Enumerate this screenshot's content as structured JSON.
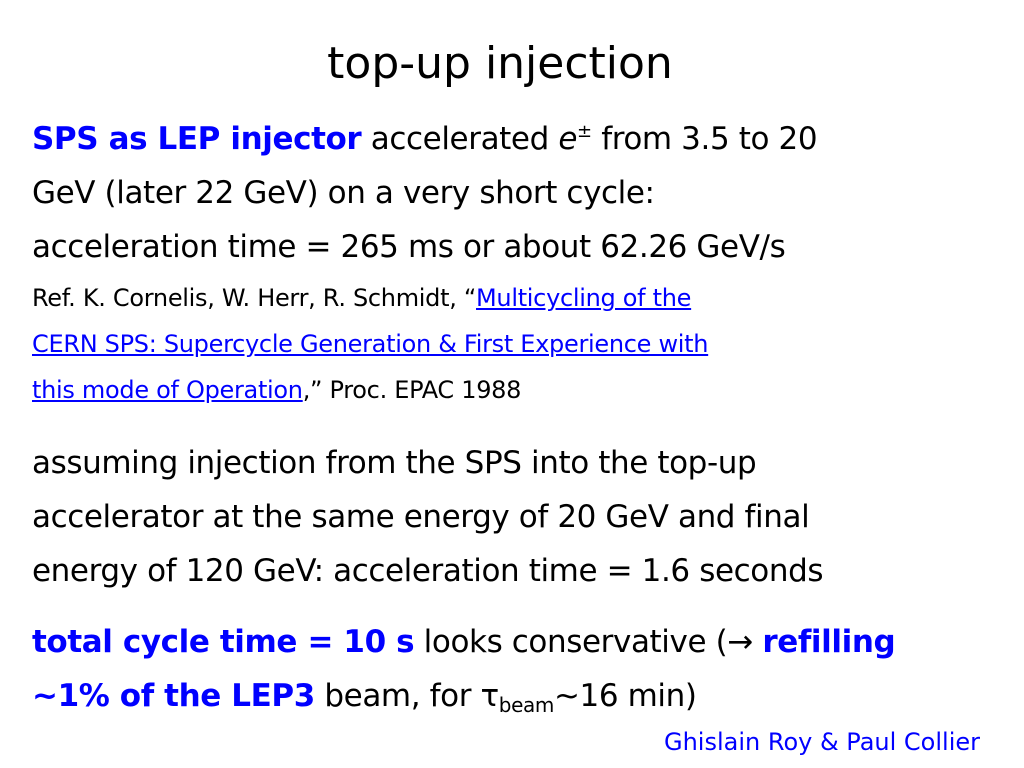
{
  "title": "top-up injection",
  "para1": {
    "highlight": "SPS as LEP injector",
    "text_a": "accelerated",
    "particle": "e",
    "particle_sup": "±",
    "text_b": "from 3.5 to 20",
    "line2": "GeV (later 22 GeV) on a very short cycle:",
    "line3": "acceleration time = 265 ms or about 62.26 GeV/s"
  },
  "reference": {
    "prefix": "Ref. K. Cornelis, W. Herr, R. Schmidt, “",
    "link_line1": "Multicycling of the",
    "link_line2": "CERN SPS: Supercycle Generation & First Experience with",
    "link_line3": "this mode of Operation",
    "suffix": ",” Proc. EPAC 1988"
  },
  "para2": {
    "line1": "assuming injection from the SPS into the top-up",
    "line2": "accelerator at the same energy of 20 GeV and final",
    "line3": "energy of 120 GeV: acceleration time = 1.6 seconds"
  },
  "para3": {
    "highlight1": "total cycle time = 10 s",
    "text_a": "looks conservative (→",
    "highlight2": "refilling",
    "highlight3": "~1% of the LEP3",
    "text_b": "beam, for",
    "tau": "τ",
    "tau_sub": "beam",
    "text_c": "~16 min)"
  },
  "credit": "Ghislain Roy & Paul Collier",
  "colors": {
    "accent": "#0000ff",
    "text": "#000000",
    "background": "#ffffff"
  }
}
